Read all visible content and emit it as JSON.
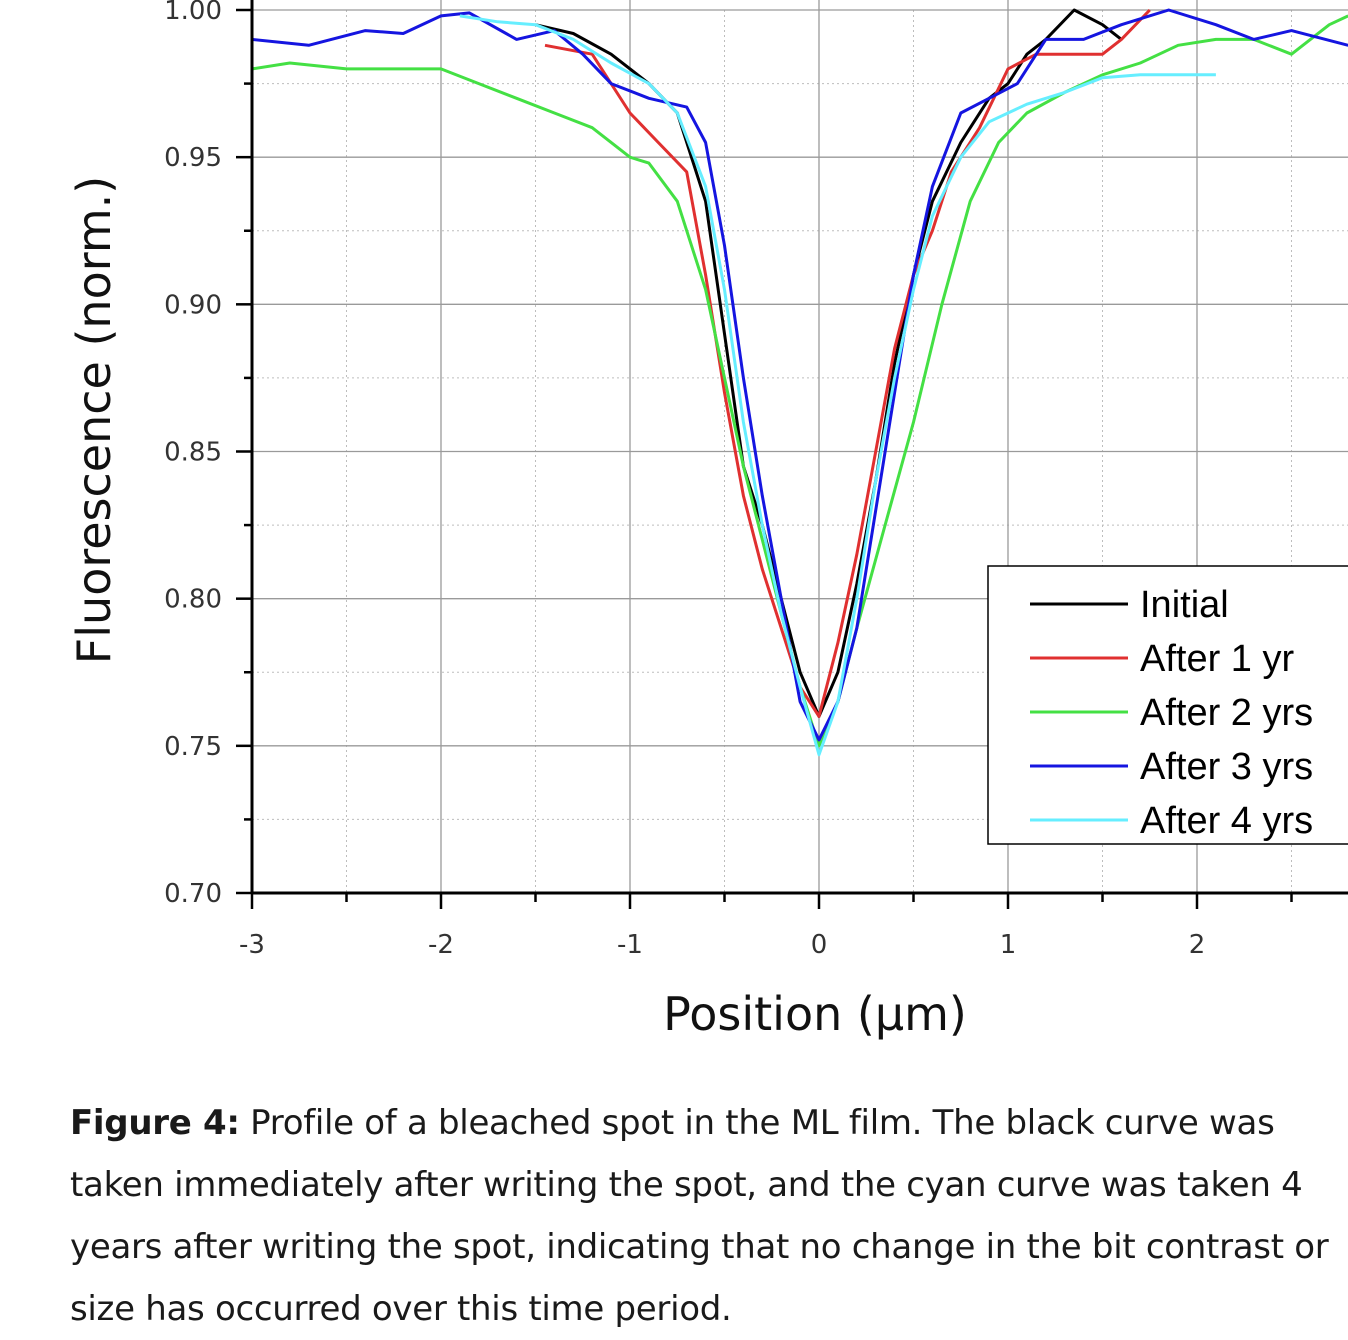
{
  "chart_data": {
    "type": "line",
    "title": "",
    "xlabel": "Position (µm)",
    "ylabel": "Fluorescence (norm.)",
    "xlim": [
      -3,
      2.8
    ],
    "ylim": [
      0.7,
      1.0
    ],
    "xticks": [
      -3,
      -2,
      -1,
      0,
      1,
      2
    ],
    "xtick_labels": [
      "-3",
      "-2",
      "-1",
      "0",
      "1",
      "2"
    ],
    "yticks": [
      0.7,
      0.75,
      0.8,
      0.85,
      0.9,
      0.95,
      1.0
    ],
    "ytick_labels": [
      "0.70",
      "0.75",
      "0.80",
      "0.85",
      "0.90",
      "0.95",
      "1.00"
    ],
    "grid": true,
    "legend_position": "right",
    "series": [
      {
        "name": "Initial",
        "color": "#000000",
        "x": [
          -1.5,
          -1.3,
          -1.1,
          -0.9,
          -0.75,
          -0.6,
          -0.5,
          -0.4,
          -0.3,
          -0.2,
          -0.1,
          0,
          0.1,
          0.2,
          0.3,
          0.4,
          0.5,
          0.6,
          0.75,
          0.9,
          1.0,
          1.1,
          1.2,
          1.35,
          1.5,
          1.6
        ],
        "y": [
          0.995,
          0.992,
          0.985,
          0.975,
          0.965,
          0.935,
          0.89,
          0.845,
          0.825,
          0.8,
          0.775,
          0.76,
          0.775,
          0.805,
          0.84,
          0.88,
          0.91,
          0.935,
          0.955,
          0.97,
          0.975,
          0.985,
          0.99,
          1.0,
          0.995,
          0.99
        ]
      },
      {
        "name": "After 1 yr",
        "color": "#e03030",
        "x": [
          -1.45,
          -1.2,
          -1.0,
          -0.85,
          -0.7,
          -0.6,
          -0.5,
          -0.4,
          -0.3,
          -0.2,
          -0.1,
          0,
          0.1,
          0.2,
          0.3,
          0.4,
          0.5,
          0.6,
          0.7,
          0.85,
          1.0,
          1.15,
          1.3,
          1.5,
          1.6,
          1.75
        ],
        "y": [
          0.988,
          0.985,
          0.965,
          0.955,
          0.945,
          0.91,
          0.87,
          0.835,
          0.81,
          0.79,
          0.77,
          0.76,
          0.785,
          0.815,
          0.85,
          0.885,
          0.91,
          0.925,
          0.945,
          0.96,
          0.98,
          0.985,
          0.985,
          0.985,
          0.99,
          1.0
        ]
      },
      {
        "name": "After 2 yrs",
        "color": "#44e044",
        "x": [
          -3.0,
          -2.8,
          -2.5,
          -2.2,
          -2.0,
          -1.8,
          -1.6,
          -1.4,
          -1.2,
          -1.0,
          -0.9,
          -0.75,
          -0.6,
          -0.5,
          -0.4,
          -0.3,
          -0.2,
          -0.1,
          0,
          0.1,
          0.2,
          0.35,
          0.5,
          0.65,
          0.8,
          0.95,
          1.1,
          1.3,
          1.5,
          1.7,
          1.9,
          2.1,
          2.3,
          2.5,
          2.7,
          2.8
        ],
        "y": [
          0.98,
          0.982,
          0.98,
          0.98,
          0.98,
          0.975,
          0.97,
          0.965,
          0.96,
          0.95,
          0.948,
          0.935,
          0.905,
          0.875,
          0.845,
          0.82,
          0.795,
          0.77,
          0.75,
          0.765,
          0.79,
          0.825,
          0.86,
          0.9,
          0.935,
          0.955,
          0.965,
          0.972,
          0.978,
          0.982,
          0.988,
          0.99,
          0.99,
          0.985,
          0.995,
          0.998
        ]
      },
      {
        "name": "After 3 yrs",
        "color": "#1515e0",
        "x": [
          -3.0,
          -2.7,
          -2.4,
          -2.2,
          -2.0,
          -1.85,
          -1.6,
          -1.4,
          -1.25,
          -1.1,
          -0.9,
          -0.7,
          -0.6,
          -0.5,
          -0.4,
          -0.3,
          -0.2,
          -0.1,
          0,
          0.1,
          0.2,
          0.3,
          0.4,
          0.5,
          0.6,
          0.75,
          0.9,
          1.05,
          1.2,
          1.4,
          1.6,
          1.85,
          2.1,
          2.3,
          2.5,
          2.8
        ],
        "y": [
          0.99,
          0.988,
          0.993,
          0.992,
          0.998,
          0.999,
          0.99,
          0.993,
          0.985,
          0.975,
          0.97,
          0.967,
          0.955,
          0.92,
          0.875,
          0.835,
          0.8,
          0.765,
          0.752,
          0.765,
          0.79,
          0.83,
          0.87,
          0.91,
          0.94,
          0.965,
          0.97,
          0.975,
          0.99,
          0.99,
          0.995,
          1.0,
          0.995,
          0.99,
          0.993,
          0.988
        ]
      },
      {
        "name": "After 4 yrs",
        "color": "#66eeff",
        "x": [
          -1.9,
          -1.7,
          -1.5,
          -1.3,
          -1.1,
          -0.9,
          -0.75,
          -0.6,
          -0.5,
          -0.4,
          -0.3,
          -0.2,
          -0.1,
          0,
          0.1,
          0.2,
          0.3,
          0.4,
          0.5,
          0.6,
          0.75,
          0.9,
          1.1,
          1.3,
          1.5,
          1.7,
          1.9,
          2.1
        ],
        "y": [
          0.998,
          0.996,
          0.995,
          0.99,
          0.982,
          0.975,
          0.965,
          0.94,
          0.905,
          0.86,
          0.825,
          0.795,
          0.77,
          0.747,
          0.765,
          0.8,
          0.84,
          0.875,
          0.905,
          0.93,
          0.95,
          0.962,
          0.968,
          0.972,
          0.977,
          0.978,
          0.978,
          0.978
        ]
      }
    ]
  },
  "caption": {
    "lead": "Figure 4:",
    "text": " Profile of a bleached spot in the ML film. The black curve was taken immediately after writing the spot, and the cyan curve was taken 4 years after writing the spot, indicating that no change in the bit contrast or size has occurred over this time period."
  }
}
